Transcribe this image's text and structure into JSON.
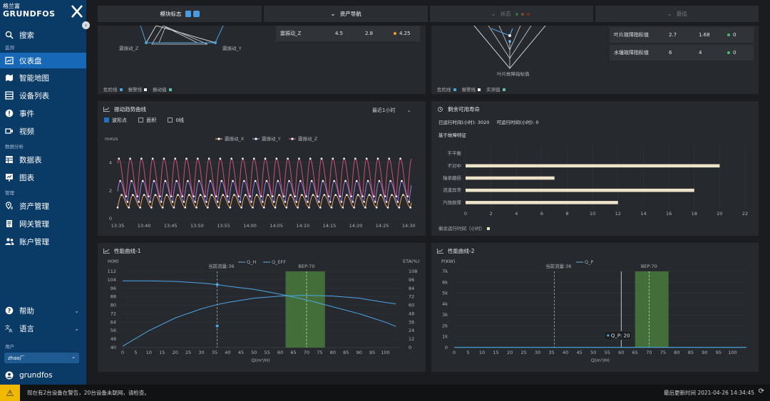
{
  "sidebar": {
    "logo_cn": "格兰富",
    "logo_en": "GRUNDFOS",
    "search": "搜索",
    "section_monitor": "监测",
    "dashboard": "仪表盘",
    "smartmap": "智能地图",
    "devicelist": "设备列表",
    "events": "事件",
    "video": "视频",
    "section_analysis": "数据分析",
    "datatable": "数据表",
    "charts": "图表",
    "section_manage": "管理",
    "asset_mgmt": "资产管理",
    "gateway_mgmt": "网关管理",
    "account_mgmt": "账户管理",
    "help": "帮助",
    "language": "语言",
    "section_user": "用户",
    "factory_select": "zhao厂",
    "username": "grundfos"
  },
  "topbar": {
    "module_flag": "模块标志",
    "asset_nav": "资产导航",
    "status": "状态",
    "tab4": "最值"
  },
  "panel_top_left": {
    "label_z": "震振动_Z",
    "label_y": "震振动_Y",
    "row_name": "震振动_Z",
    "row_v1": "4.5",
    "row_v2": "2.8",
    "row_v3": "4.25",
    "legend": [
      "危险线",
      "报警线",
      "振动值"
    ],
    "colors": {
      "danger": "#4aa3df",
      "alarm": "#f2f2f2",
      "value": "#5fbfb0"
    }
  },
  "panel_top_right": {
    "radar_label": "叶片故障指标值",
    "rows": [
      {
        "name": "叶片故障指标值",
        "v1": "2.7",
        "v2": "1.68",
        "v3": "0"
      },
      {
        "name": "水锤故障指标值",
        "v1": "6",
        "v2": "4",
        "v3": "0"
      }
    ],
    "legend": [
      "危险线",
      "报警线",
      "实测值"
    ]
  },
  "panel_trend": {
    "title": "振动趋势曲线",
    "range": "最近1小时",
    "opt_dots": "波形点",
    "opt_area": "面积",
    "opt_zero": "0线",
    "unit": "mm/s",
    "series": [
      "震振动_X",
      "震振动_Y",
      "震振动_Z"
    ],
    "colors": [
      "#e8a060",
      "#9a7ce0",
      "#d05070"
    ]
  },
  "panel_rul": {
    "title": "剩余可用寿命",
    "operated_label": "已运行时间(小时):",
    "operated_value": "3020",
    "remaining_label": "可运行时间(小时):",
    "remaining_value": "0",
    "basis": "基于故障特征",
    "legend": "剩余运行时间（小时）"
  },
  "panel_perf1": {
    "title": "性能曲线-1",
    "left_unit": "H(M)",
    "right_unit": "ETA(%)",
    "current_flow": "当前流量:36",
    "series": [
      "Q_H",
      "Q_EFF"
    ],
    "bep": "BEP:70",
    "xlabel": "Q(m³/H)"
  },
  "panel_perf2": {
    "title": "性能曲线-2",
    "left_unit": "P(KW)",
    "current_flow": "当前流量:36",
    "series": [
      "Q_P"
    ],
    "bep": "BEP:70",
    "xlabel": "Q(m³/H)",
    "tooltip": "Q_P: 20"
  },
  "statusbar": {
    "message": "现在有2台设备在警告，20台设备未联网，请检查。",
    "updated": "最后更新时间 2021-04-26 14:34:45"
  },
  "chart_data": [
    {
      "type": "line",
      "title": "振动趋势曲线",
      "ylabel": "mm/s",
      "x": [
        "13:35",
        "13:40",
        "13:45",
        "13:50",
        "13:55",
        "14:00",
        "14:05",
        "14:10",
        "14:15",
        "14:20",
        "14:25",
        "14:30"
      ],
      "ylim": [
        0,
        5
      ],
      "yticks": [
        0,
        2,
        4
      ],
      "series": [
        {
          "name": "震振动_X",
          "min": 0.8,
          "max": 1.7
        },
        {
          "name": "震振动_Y",
          "min": 1.2,
          "max": 2.7
        },
        {
          "name": "震振动_Z",
          "min": 1.6,
          "max": 4.3
        }
      ],
      "period_minutes": 2.3
    },
    {
      "type": "bar",
      "title": "剩余可用寿命",
      "categories": [
        "不平衡",
        "不对中",
        "轴承磨损",
        "流道异常",
        "汽蚀故障"
      ],
      "values": [
        0,
        20,
        7,
        18,
        12
      ],
      "xlim": [
        0,
        22
      ],
      "xticks": [
        0,
        2,
        4,
        6,
        8,
        10,
        12,
        14,
        16,
        18,
        20,
        22
      ]
    },
    {
      "type": "line",
      "title": "性能曲线-1",
      "xlabel": "Q(m³/H)",
      "ylabel": "H(M)",
      "xlim": [
        0,
        105
      ],
      "xticks": [
        0,
        5,
        10,
        15,
        20,
        25,
        30,
        35,
        40,
        45,
        50,
        55,
        60,
        65,
        70,
        75,
        80,
        85,
        90,
        95,
        100
      ],
      "ylim_left": [
        40,
        112
      ],
      "yticks_left": [
        40,
        48,
        56,
        64,
        72,
        80,
        88,
        96,
        104,
        112
      ],
      "ylim_right": [
        0,
        108
      ],
      "yticks_right": [
        0,
        12,
        24,
        36,
        48,
        60,
        72,
        84,
        96,
        108
      ],
      "bep_x": 70,
      "bep_band": [
        62,
        77
      ],
      "current_x": 36,
      "series": [
        {
          "name": "Q_H",
          "x": [
            0,
            10,
            20,
            30,
            36,
            40,
            50,
            60,
            70,
            80,
            90,
            100,
            104
          ],
          "y": [
            103,
            103,
            102.5,
            101,
            99.5,
            98,
            95,
            90.5,
            85,
            78.5,
            72,
            64,
            60
          ]
        },
        {
          "name": "Q_EFF",
          "x": [
            0,
            10,
            20,
            30,
            36,
            40,
            50,
            60,
            70,
            80,
            90,
            100,
            104
          ],
          "y": [
            2,
            24,
            42,
            55,
            61,
            64,
            70,
            73,
            74,
            73,
            70,
            64,
            62
          ]
        }
      ]
    },
    {
      "type": "line",
      "title": "性能曲线-2",
      "xlabel": "Q(m³/H)",
      "ylabel": "P(KW)",
      "xlim": [
        0,
        105
      ],
      "xticks": [
        0,
        5,
        10,
        15,
        20,
        25,
        30,
        35,
        40,
        45,
        50,
        55,
        60,
        65,
        70,
        75,
        80,
        85,
        90,
        95,
        100
      ],
      "ylim": [
        0,
        7000
      ],
      "yticks": [
        "0",
        "1k",
        "2k",
        "3k",
        "4k",
        "5k",
        "6k",
        "7k"
      ],
      "bep_x": 70,
      "bep_band": [
        65,
        77
      ],
      "current_x": 36,
      "series": [
        {
          "name": "Q_P",
          "x": [
            0,
            105
          ],
          "y": [
            20,
            20
          ]
        }
      ]
    }
  ]
}
